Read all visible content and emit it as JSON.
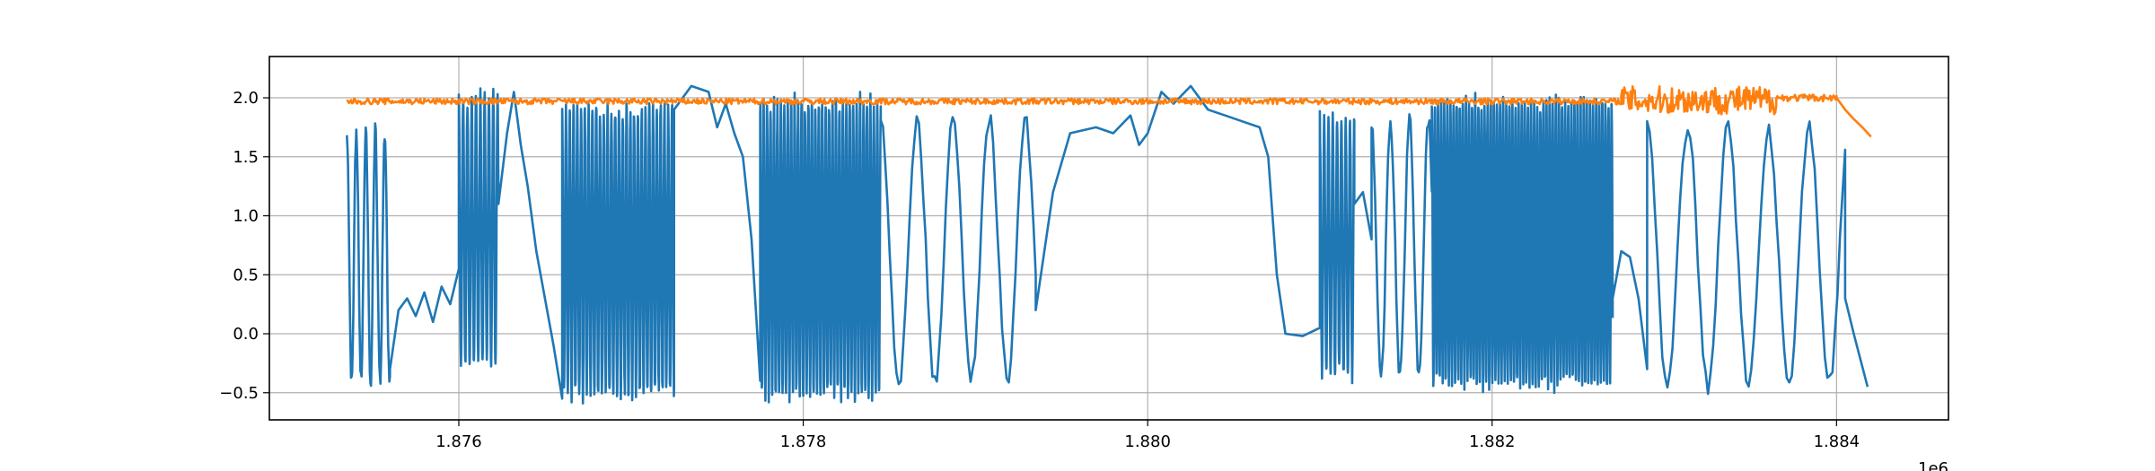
{
  "chart_data": {
    "type": "line",
    "title": "",
    "xlabel": "",
    "ylabel": "",
    "x_offset_label": "1e6",
    "xlim": [
      1874900,
      1884650
    ],
    "ylim": [
      -0.73,
      2.35
    ],
    "grid": true,
    "legend": "none",
    "x_ticks": [
      {
        "value": 1876000,
        "label": "1.876"
      },
      {
        "value": 1878000,
        "label": "1.878"
      },
      {
        "value": 1880000,
        "label": "1.880"
      },
      {
        "value": 1882000,
        "label": "1.882"
      },
      {
        "value": 1884000,
        "label": "1.884"
      }
    ],
    "y_ticks": [
      {
        "value": -0.5,
        "label": "−0.5"
      },
      {
        "value": 0.0,
        "label": "0.0"
      },
      {
        "value": 0.5,
        "label": "0.5"
      },
      {
        "value": 1.0,
        "label": "1.0"
      },
      {
        "value": 1.5,
        "label": "1.5"
      },
      {
        "value": 2.0,
        "label": "2.0"
      }
    ],
    "series": [
      {
        "color": "#1f77b4",
        "segments": [
          {
            "kind": "osc",
            "x0": 1875350,
            "x1": 1875600,
            "period": 55,
            "lo": -0.47,
            "hi": 1.75
          },
          {
            "kind": "pts",
            "pts": [
              [
                1875600,
                -0.3
              ],
              [
                1875650,
                0.2
              ],
              [
                1875700,
                0.3
              ],
              [
                1875750,
                0.15
              ],
              [
                1875800,
                0.35
              ],
              [
                1875850,
                0.1
              ],
              [
                1875900,
                0.4
              ],
              [
                1875950,
                0.25
              ],
              [
                1876000,
                0.55
              ]
            ]
          },
          {
            "kind": "osc",
            "x0": 1876000,
            "x1": 1876230,
            "period": 25,
            "lo": -0.3,
            "hi": 2.05
          },
          {
            "kind": "pts",
            "pts": [
              [
                1876230,
                1.1
              ],
              [
                1876280,
                1.7
              ],
              [
                1876320,
                2.05
              ],
              [
                1876360,
                1.6
              ],
              [
                1876400,
                1.25
              ],
              [
                1876450,
                0.7
              ],
              [
                1876500,
                0.3
              ],
              [
                1876550,
                -0.1
              ],
              [
                1876600,
                -0.55
              ]
            ]
          },
          {
            "kind": "osc",
            "x0": 1876600,
            "x1": 1877250,
            "period": 22,
            "lo": -0.55,
            "hi": 1.95
          },
          {
            "kind": "pts",
            "pts": [
              [
                1877250,
                1.9
              ],
              [
                1877350,
                2.1
              ],
              [
                1877450,
                2.05
              ],
              [
                1877500,
                1.75
              ],
              [
                1877550,
                1.95
              ],
              [
                1877600,
                1.7
              ],
              [
                1877650,
                1.5
              ],
              [
                1877700,
                0.8
              ],
              [
                1877750,
                -0.4
              ]
            ]
          },
          {
            "kind": "osc",
            "x0": 1877750,
            "x1": 1878450,
            "period": 20,
            "lo": -0.55,
            "hi": 2.0
          },
          {
            "kind": "osc",
            "x0": 1878450,
            "x1": 1879350,
            "period": 210,
            "lo": -0.45,
            "hi": 1.85
          },
          {
            "kind": "pts",
            "pts": [
              [
                1879350,
                0.2
              ],
              [
                1879450,
                1.2
              ],
              [
                1879550,
                1.7
              ],
              [
                1879700,
                1.75
              ],
              [
                1879800,
                1.7
              ],
              [
                1879900,
                1.85
              ],
              [
                1879950,
                1.6
              ],
              [
                1880000,
                1.7
              ],
              [
                1880080,
                2.05
              ],
              [
                1880150,
                1.95
              ],
              [
                1880250,
                2.1
              ],
              [
                1880350,
                1.9
              ],
              [
                1880450,
                1.85
              ],
              [
                1880550,
                1.8
              ],
              [
                1880650,
                1.75
              ],
              [
                1880700,
                1.5
              ],
              [
                1880750,
                0.5
              ],
              [
                1880800,
                0.0
              ],
              [
                1880900,
                -0.02
              ],
              [
                1881000,
                0.05
              ]
            ]
          },
          {
            "kind": "osc",
            "x0": 1881000,
            "x1": 1881200,
            "period": 25,
            "lo": -0.38,
            "hi": 1.85
          },
          {
            "kind": "pts",
            "pts": [
              [
                1881200,
                1.1
              ],
              [
                1881250,
                1.2
              ],
              [
                1881300,
                0.8
              ]
            ]
          },
          {
            "kind": "osc",
            "x0": 1881300,
            "x1": 1881650,
            "period": 110,
            "lo": -0.4,
            "hi": 1.85
          },
          {
            "kind": "osc",
            "x0": 1881650,
            "x1": 1882700,
            "period": 18,
            "lo": -0.45,
            "hi": 2.0
          },
          {
            "kind": "pts",
            "pts": [
              [
                1882700,
                0.3
              ],
              [
                1882750,
                0.7
              ],
              [
                1882800,
                0.65
              ],
              [
                1882850,
                0.3
              ],
              [
                1882900,
                -0.3
              ]
            ]
          },
          {
            "kind": "osc",
            "x0": 1882900,
            "x1": 1884050,
            "period": 235,
            "lo": -0.48,
            "hi": 1.8
          },
          {
            "kind": "pts",
            "pts": [
              [
                1884050,
                0.3
              ],
              [
                1884100,
                0.0
              ],
              [
                1884180,
                -0.45
              ]
            ]
          }
        ]
      },
      {
        "color": "#ff7f0e",
        "segments": [
          {
            "kind": "noise",
            "x0": 1875350,
            "x1": 1882750,
            "base": 1.97,
            "amp": 0.025
          },
          {
            "kind": "noise",
            "x0": 1882750,
            "x1": 1883650,
            "base": 1.98,
            "amp": 0.12
          },
          {
            "kind": "noise",
            "x0": 1883650,
            "x1": 1884000,
            "base": 2.0,
            "amp": 0.03
          },
          {
            "kind": "pts",
            "pts": [
              [
                1884000,
                2.0
              ],
              [
                1884050,
                1.9
              ],
              [
                1884100,
                1.82
              ],
              [
                1884150,
                1.75
              ],
              [
                1884200,
                1.67
              ]
            ]
          }
        ]
      }
    ]
  }
}
